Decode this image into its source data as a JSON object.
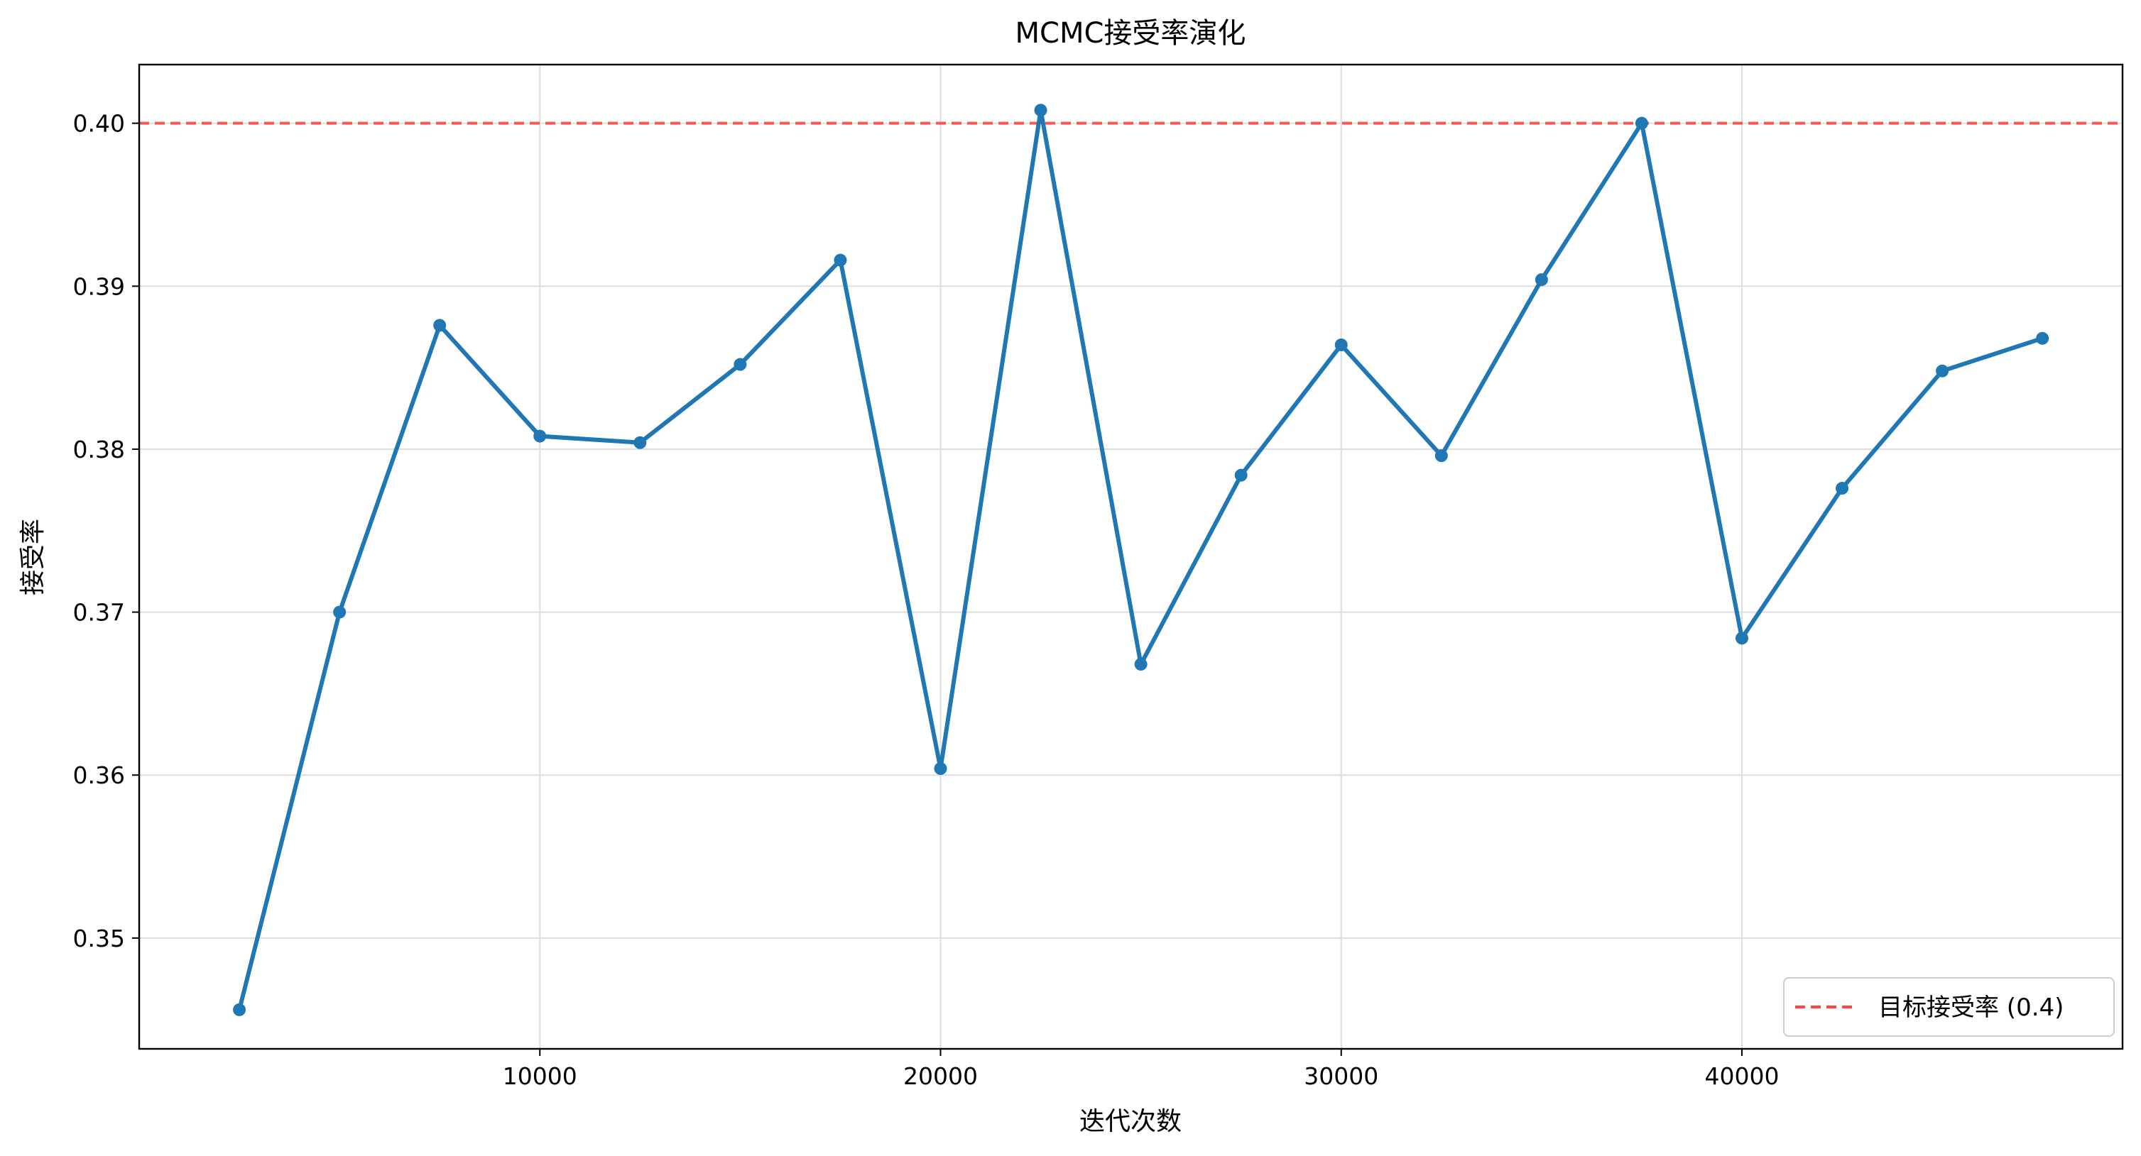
{
  "chart_data": {
    "type": "line",
    "title": "MCMC接受率演化",
    "xlabel": "迭代次数",
    "ylabel": "接受率",
    "xlim": [
      0,
      49500
    ],
    "ylim": [
      0.3432,
      0.4036
    ],
    "xticks": [
      10000,
      20000,
      30000,
      40000
    ],
    "yticks": [
      0.35,
      0.36,
      0.37,
      0.38,
      0.39,
      0.4
    ],
    "ytick_labels": [
      "0.35",
      "0.36",
      "0.37",
      "0.38",
      "0.39",
      "0.40"
    ],
    "grid": true,
    "legend_position": "bottom-right",
    "series": [
      {
        "color": "#1f77b4",
        "x": [
          2500,
          5000,
          7500,
          10000,
          12500,
          15000,
          17500,
          20000,
          22500,
          25000,
          27500,
          30000,
          32500,
          35000,
          37500,
          40000,
          42500,
          45000,
          47500
        ],
        "y": [
          0.3456,
          0.37,
          0.3876,
          0.3808,
          0.3804,
          0.3852,
          0.3916,
          0.3604,
          0.4008,
          0.3668,
          0.3784,
          0.3864,
          0.3796,
          0.3904,
          0.4,
          0.3684,
          0.3776,
          0.3848,
          0.3868
        ]
      }
    ],
    "reference_line": {
      "name": "目标接受率 (0.4)",
      "y": 0.4,
      "color": "#ff4444",
      "style": "dashed"
    }
  }
}
